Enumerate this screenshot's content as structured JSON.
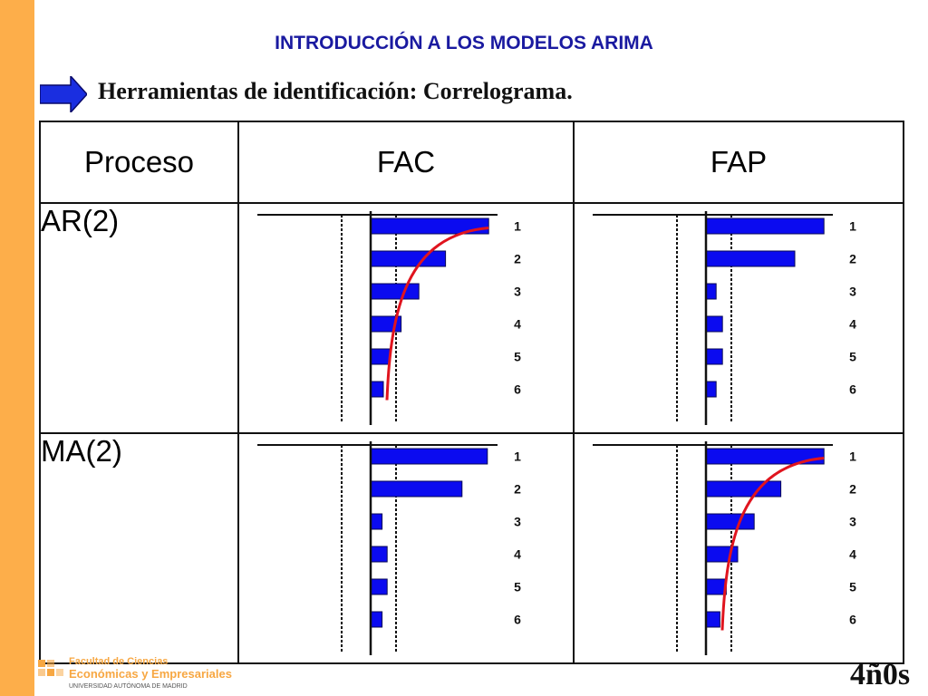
{
  "page": {
    "title": "INTRODUCCIÓN A LOS MODELOS ARIMA",
    "subtitle": "Herramientas de identificación: Correlograma."
  },
  "table": {
    "headers": [
      "Proceso",
      "FAC",
      "FAP"
    ],
    "rows": [
      {
        "label": "AR(2)"
      },
      {
        "label": "MA(2)"
      }
    ]
  },
  "colors": {
    "bar": "#0b0bf0",
    "decay_curve": "#e0141e",
    "accent": "#fdae4a"
  },
  "chart_data": [
    {
      "type": "bar",
      "name": "FAC AR(2)",
      "categories": [
        "1",
        "2",
        "3",
        "4",
        "5",
        "6"
      ],
      "values": [
        0.93,
        0.59,
        0.38,
        0.24,
        0.15,
        0.1
      ],
      "decay_curve": true
    },
    {
      "type": "bar",
      "name": "FAP AR(2)",
      "categories": [
        "1",
        "2",
        "3",
        "4",
        "5",
        "6"
      ],
      "values": [
        0.93,
        0.7,
        0.08,
        0.13,
        0.13,
        0.08
      ],
      "decay_curve": false
    },
    {
      "type": "bar",
      "name": "FAC MA(2)",
      "categories": [
        "1",
        "2",
        "3",
        "4",
        "5",
        "6"
      ],
      "values": [
        0.92,
        0.72,
        0.09,
        0.13,
        0.13,
        0.09
      ],
      "decay_curve": false
    },
    {
      "type": "bar",
      "name": "FAP MA(2)",
      "categories": [
        "1",
        "2",
        "3",
        "4",
        "5",
        "6"
      ],
      "values": [
        0.93,
        0.59,
        0.38,
        0.25,
        0.16,
        0.11
      ],
      "decay_curve": true
    }
  ],
  "footer": {
    "logo_line1": "Facultad de Ciencias",
    "logo_line2": "Económicas y Empresariales",
    "logo_line3": "UNIVERSIDAD AUTÓNOMA DE MADRID",
    "badge": "4ñ0s"
  }
}
